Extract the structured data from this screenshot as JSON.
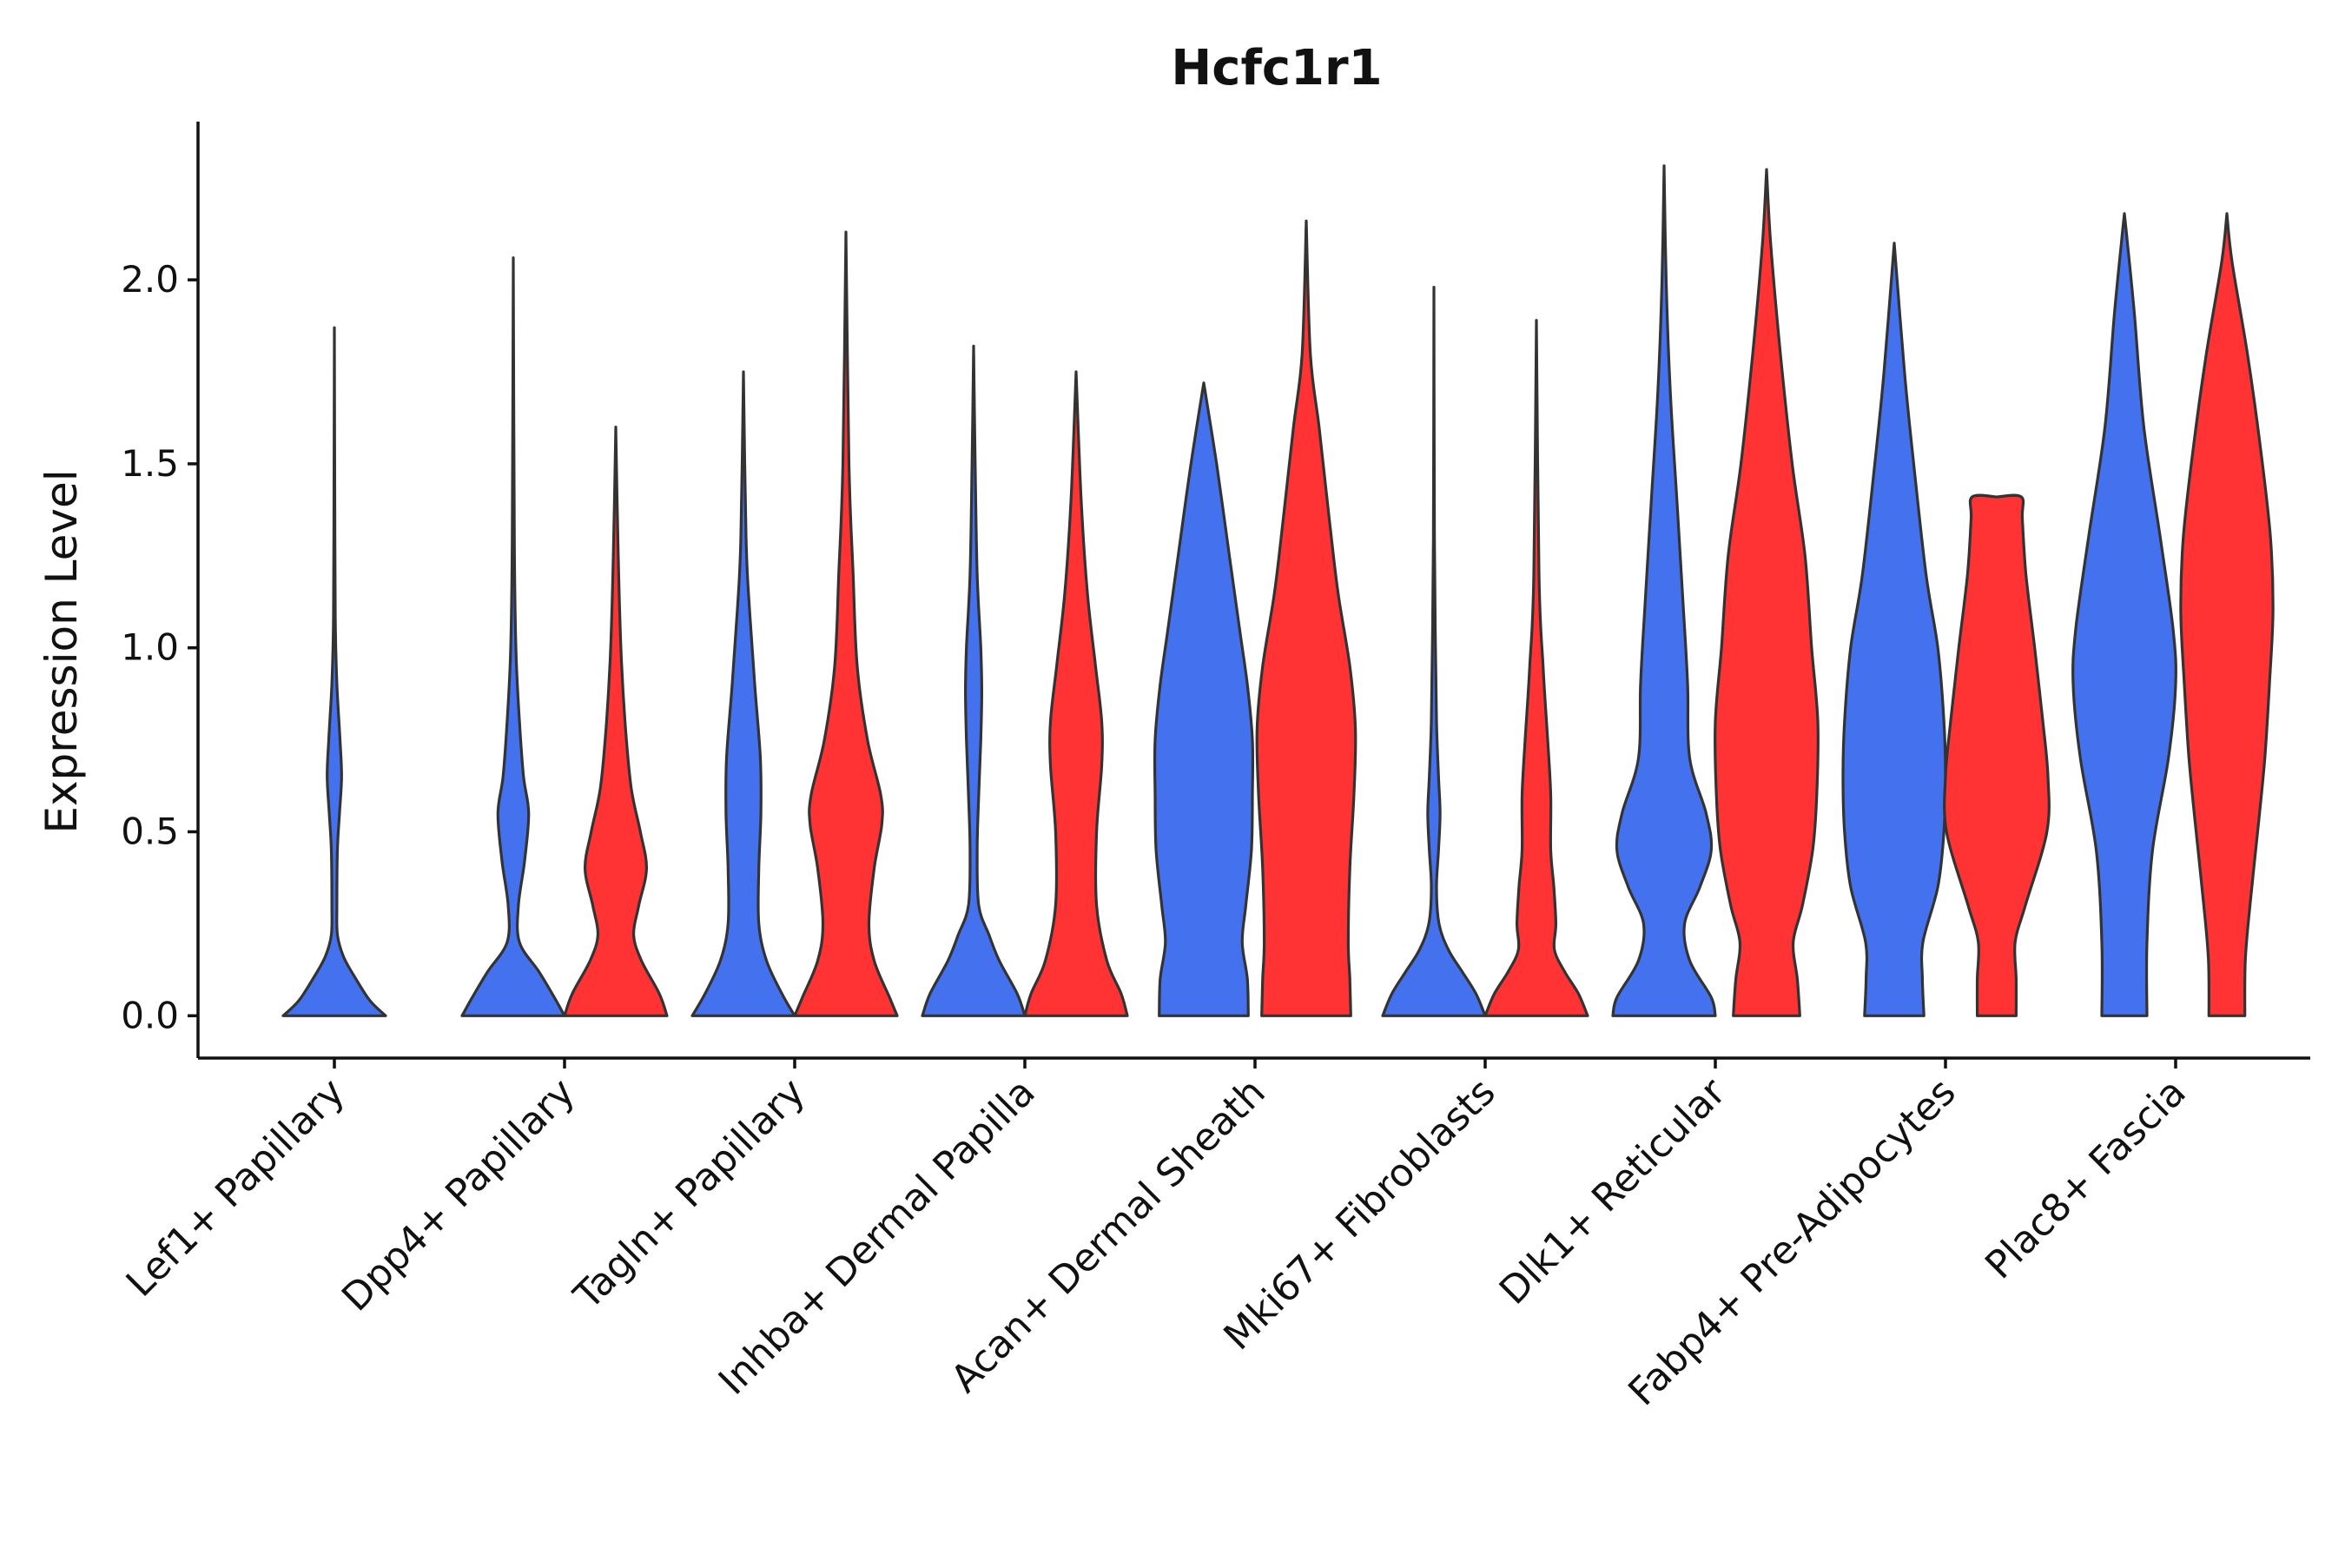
{
  "chart_data": {
    "type": "violin",
    "title": "Hcfc1r1",
    "xlabel": "",
    "ylabel": "Expression Level",
    "ylim": [
      -0.115,
      2.43
    ],
    "yticks": [
      0.0,
      0.5,
      1.0,
      1.5,
      2.0
    ],
    "ytick_labels": [
      "0.0",
      "0.5",
      "1.0",
      "1.5",
      "2.0"
    ],
    "grid": false,
    "legend": "none",
    "colors": {
      "group_a": "#4472EE",
      "group_b": "#FF3333",
      "outline": "#333333"
    },
    "categories": [
      "Lef1+ Papillary",
      "Dpp4+ Papillary",
      "Tagln+ Papillary",
      "Inhba+ Dermal Papilla",
      "Acan+ Dermal Sheath",
      "Mki67+ Fibroblasts",
      "Dlk1+ Reticular",
      "Fabp4+ Pre-Adipocytes",
      "Plac8+ Fascia"
    ],
    "violins": [
      {
        "category": 0,
        "group": "group_a",
        "max": 1.87,
        "min": 0.0,
        "density": [
          [
            0,
            1.0
          ],
          [
            0.04,
            0.7
          ],
          [
            0.1,
            0.42
          ],
          [
            0.16,
            0.18
          ],
          [
            0.22,
            0.06
          ],
          [
            0.3,
            0.05
          ],
          [
            0.45,
            0.06
          ],
          [
            0.55,
            0.1
          ],
          [
            0.65,
            0.14
          ],
          [
            0.75,
            0.11
          ],
          [
            0.9,
            0.05
          ],
          [
            1.05,
            0.02
          ],
          [
            1.3,
            0.01
          ],
          [
            1.87,
            0.0
          ]
        ]
      },
      {
        "category": 1,
        "group": "group_a",
        "max": 2.06,
        "min": 0.0,
        "density": [
          [
            0,
            1.0
          ],
          [
            0.05,
            0.8
          ],
          [
            0.12,
            0.5
          ],
          [
            0.2,
            0.12
          ],
          [
            0.3,
            0.1
          ],
          [
            0.42,
            0.22
          ],
          [
            0.55,
            0.3
          ],
          [
            0.65,
            0.2
          ],
          [
            0.8,
            0.12
          ],
          [
            1.0,
            0.05
          ],
          [
            1.3,
            0.02
          ],
          [
            2.06,
            0.0
          ]
        ]
      },
      {
        "category": 1,
        "group": "group_b",
        "max": 1.6,
        "min": 0.0,
        "density": [
          [
            0,
            1.0
          ],
          [
            0.06,
            0.85
          ],
          [
            0.15,
            0.5
          ],
          [
            0.22,
            0.35
          ],
          [
            0.3,
            0.45
          ],
          [
            0.4,
            0.6
          ],
          [
            0.5,
            0.48
          ],
          [
            0.62,
            0.3
          ],
          [
            0.8,
            0.18
          ],
          [
            1.0,
            0.1
          ],
          [
            1.3,
            0.04
          ],
          [
            1.6,
            0.0
          ]
        ]
      },
      {
        "category": 2,
        "group": "group_a",
        "max": 1.75,
        "min": 0.0,
        "density": [
          [
            0,
            1.0
          ],
          [
            0.06,
            0.75
          ],
          [
            0.15,
            0.45
          ],
          [
            0.25,
            0.3
          ],
          [
            0.4,
            0.3
          ],
          [
            0.55,
            0.34
          ],
          [
            0.7,
            0.33
          ],
          [
            0.9,
            0.22
          ],
          [
            1.1,
            0.12
          ],
          [
            1.3,
            0.05
          ],
          [
            1.75,
            0.0
          ]
        ]
      },
      {
        "category": 2,
        "group": "group_b",
        "max": 2.13,
        "min": 0.0,
        "density": [
          [
            0,
            1.0
          ],
          [
            0.05,
            0.85
          ],
          [
            0.15,
            0.55
          ],
          [
            0.25,
            0.45
          ],
          [
            0.4,
            0.55
          ],
          [
            0.52,
            0.7
          ],
          [
            0.6,
            0.68
          ],
          [
            0.75,
            0.42
          ],
          [
            0.95,
            0.22
          ],
          [
            1.2,
            0.14
          ],
          [
            1.5,
            0.06
          ],
          [
            2.13,
            0.0
          ]
        ]
      },
      {
        "category": 3,
        "group": "group_a",
        "max": 1.82,
        "min": 0.0,
        "density": [
          [
            0,
            1.0
          ],
          [
            0.06,
            0.85
          ],
          [
            0.15,
            0.5
          ],
          [
            0.22,
            0.3
          ],
          [
            0.3,
            0.1
          ],
          [
            0.45,
            0.07
          ],
          [
            0.6,
            0.1
          ],
          [
            0.75,
            0.14
          ],
          [
            0.88,
            0.16
          ],
          [
            1.0,
            0.14
          ],
          [
            1.2,
            0.07
          ],
          [
            1.5,
            0.03
          ],
          [
            1.82,
            0.0
          ]
        ]
      },
      {
        "category": 3,
        "group": "group_b",
        "max": 1.75,
        "min": 0.0,
        "density": [
          [
            0,
            1.0
          ],
          [
            0.06,
            0.88
          ],
          [
            0.15,
            0.6
          ],
          [
            0.3,
            0.4
          ],
          [
            0.5,
            0.4
          ],
          [
            0.68,
            0.5
          ],
          [
            0.8,
            0.5
          ],
          [
            0.95,
            0.38
          ],
          [
            1.15,
            0.22
          ],
          [
            1.4,
            0.1
          ],
          [
            1.75,
            0.0
          ]
        ]
      },
      {
        "category": 4,
        "group": "group_a",
        "max": 1.72,
        "min": 0.0,
        "density": [
          [
            0,
            0.87
          ],
          [
            0.1,
            0.85
          ],
          [
            0.2,
            0.75
          ],
          [
            0.3,
            0.82
          ],
          [
            0.45,
            0.93
          ],
          [
            0.6,
            0.95
          ],
          [
            0.75,
            0.95
          ],
          [
            0.9,
            0.85
          ],
          [
            1.05,
            0.7
          ],
          [
            1.25,
            0.5
          ],
          [
            1.5,
            0.25
          ],
          [
            1.72,
            0.0
          ]
        ]
      },
      {
        "category": 4,
        "group": "group_b",
        "max": 2.16,
        "min": 0.0,
        "density": [
          [
            0,
            0.87
          ],
          [
            0.1,
            0.85
          ],
          [
            0.2,
            0.82
          ],
          [
            0.4,
            0.85
          ],
          [
            0.6,
            0.93
          ],
          [
            0.78,
            0.96
          ],
          [
            0.95,
            0.85
          ],
          [
            1.15,
            0.62
          ],
          [
            1.35,
            0.45
          ],
          [
            1.6,
            0.25
          ],
          [
            1.8,
            0.08
          ],
          [
            2.16,
            0.0
          ]
        ]
      },
      {
        "category": 5,
        "group": "group_a",
        "max": 1.98,
        "min": 0.0,
        "density": [
          [
            0,
            1.0
          ],
          [
            0.06,
            0.82
          ],
          [
            0.12,
            0.55
          ],
          [
            0.18,
            0.28
          ],
          [
            0.25,
            0.1
          ],
          [
            0.35,
            0.05
          ],
          [
            0.45,
            0.09
          ],
          [
            0.55,
            0.12
          ],
          [
            0.65,
            0.09
          ],
          [
            0.8,
            0.05
          ],
          [
            1.0,
            0.03
          ],
          [
            1.3,
            0.01
          ],
          [
            1.98,
            0.0
          ]
        ]
      },
      {
        "category": 5,
        "group": "group_b",
        "max": 1.89,
        "min": 0.0,
        "density": [
          [
            0,
            1.0
          ],
          [
            0.06,
            0.82
          ],
          [
            0.12,
            0.55
          ],
          [
            0.18,
            0.35
          ],
          [
            0.25,
            0.38
          ],
          [
            0.35,
            0.34
          ],
          [
            0.45,
            0.28
          ],
          [
            0.6,
            0.28
          ],
          [
            0.75,
            0.22
          ],
          [
            0.95,
            0.13
          ],
          [
            1.2,
            0.05
          ],
          [
            1.89,
            0.0
          ]
        ]
      },
      {
        "category": 6,
        "group": "group_a",
        "max": 2.31,
        "min": 0.0,
        "density": [
          [
            0,
            1.0
          ],
          [
            0.05,
            0.92
          ],
          [
            0.15,
            0.5
          ],
          [
            0.25,
            0.4
          ],
          [
            0.35,
            0.7
          ],
          [
            0.45,
            0.92
          ],
          [
            0.55,
            0.82
          ],
          [
            0.7,
            0.5
          ],
          [
            0.9,
            0.46
          ],
          [
            1.1,
            0.38
          ],
          [
            1.4,
            0.25
          ],
          [
            1.7,
            0.12
          ],
          [
            2.0,
            0.04
          ],
          [
            2.31,
            0.0
          ]
        ]
      },
      {
        "category": 6,
        "group": "group_b",
        "max": 2.3,
        "min": 0.0,
        "density": [
          [
            0,
            0.65
          ],
          [
            0.1,
            0.6
          ],
          [
            0.2,
            0.52
          ],
          [
            0.3,
            0.7
          ],
          [
            0.45,
            0.9
          ],
          [
            0.6,
            0.98
          ],
          [
            0.8,
            1.0
          ],
          [
            1.0,
            0.88
          ],
          [
            1.25,
            0.75
          ],
          [
            1.5,
            0.5
          ],
          [
            1.8,
            0.27
          ],
          [
            2.1,
            0.08
          ],
          [
            2.3,
            0.0
          ]
        ]
      },
      {
        "category": 7,
        "group": "group_a",
        "max": 2.1,
        "min": 0.0,
        "density": [
          [
            0,
            0.58
          ],
          [
            0.1,
            0.55
          ],
          [
            0.2,
            0.56
          ],
          [
            0.35,
            0.85
          ],
          [
            0.5,
            0.97
          ],
          [
            0.65,
            1.0
          ],
          [
            0.8,
            0.97
          ],
          [
            1.0,
            0.85
          ],
          [
            1.2,
            0.62
          ],
          [
            1.5,
            0.38
          ],
          [
            1.75,
            0.2
          ],
          [
            2.1,
            0.0
          ]
        ]
      },
      {
        "category": 7,
        "group": "group_b",
        "max": 1.41,
        "min": 0.0,
        "density": [
          [
            0,
            0.38
          ],
          [
            0.1,
            0.38
          ],
          [
            0.2,
            0.36
          ],
          [
            0.3,
            0.56
          ],
          [
            0.5,
            0.98
          ],
          [
            0.65,
            1.0
          ],
          [
            0.8,
            0.9
          ],
          [
            1.0,
            0.74
          ],
          [
            1.2,
            0.57
          ],
          [
            1.35,
            0.5
          ],
          [
            1.41,
            0.48
          ],
          [
            1.41,
            0.0
          ]
        ]
      },
      {
        "category": 8,
        "group": "group_a",
        "max": 2.18,
        "min": 0.0,
        "density": [
          [
            0,
            0.44
          ],
          [
            0.2,
            0.44
          ],
          [
            0.45,
            0.55
          ],
          [
            0.7,
            0.86
          ],
          [
            0.9,
            1.0
          ],
          [
            1.05,
            0.95
          ],
          [
            1.3,
            0.7
          ],
          [
            1.6,
            0.38
          ],
          [
            1.9,
            0.2
          ],
          [
            2.1,
            0.06
          ],
          [
            2.18,
            0.0
          ]
        ]
      },
      {
        "category": 8,
        "group": "group_b",
        "max": 2.18,
        "min": 0.0,
        "density": [
          [
            0,
            0.35
          ],
          [
            0.15,
            0.36
          ],
          [
            0.3,
            0.45
          ],
          [
            0.5,
            0.6
          ],
          [
            0.7,
            0.74
          ],
          [
            0.9,
            0.83
          ],
          [
            1.1,
            0.9
          ],
          [
            1.3,
            0.85
          ],
          [
            1.55,
            0.65
          ],
          [
            1.8,
            0.4
          ],
          [
            2.05,
            0.1
          ],
          [
            2.18,
            0.0
          ]
        ]
      }
    ]
  }
}
